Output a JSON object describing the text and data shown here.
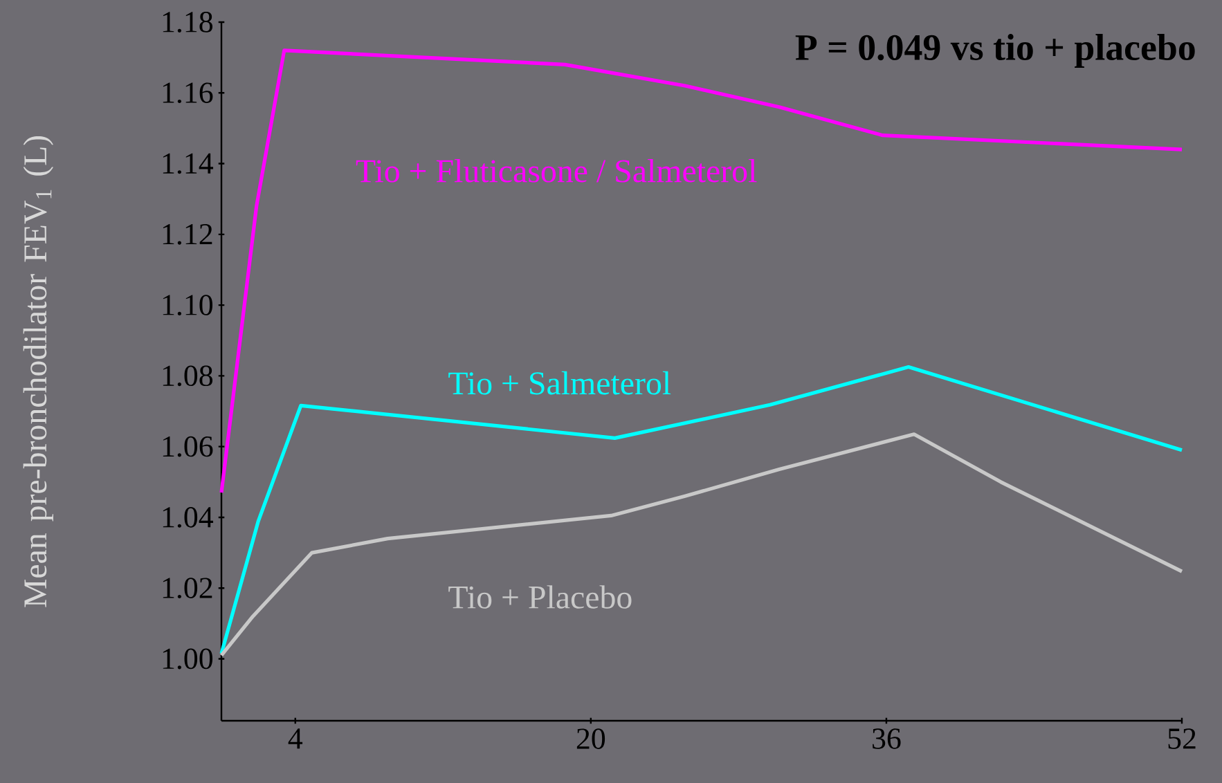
{
  "chart_data": {
    "type": "line",
    "ylabel": "Mean pre-bronchodilator FEV$_{1}$ (L)",
    "annotations": [
      "**P = 0.049 vs tio + placebo**"
    ],
    "xlim": [
      0,
      52
    ],
    "xticks": [
      4,
      20,
      36,
      52
    ],
    "ylim": [
      0.9825,
      1.18
    ],
    "yticks": [
      {
        "value": 1,
        "label": "1.00"
      },
      1.02,
      1.04,
      1.06,
      1.08,
      {
        "value": 1.1,
        "label": "1.10"
      },
      1.12,
      1.14,
      1.16,
      1.18
    ],
    "grid": false,
    "marker": "none",
    "line_style": "solid",
    "series": [
      {
        "name": "Tio + Fluticasone / Salmeterol",
        "color": "#ff00ff",
        "x": [
          0,
          1.9,
          3.4,
          18.6,
          25.1,
          30.2,
          35.8,
          52
        ],
        "values": [
          1.047,
          1.128,
          1.172,
          1.168,
          1.162,
          1.156,
          1.148,
          1.144
        ]
      },
      {
        "name": "Tio + Salmeterol",
        "color": "#00ffff",
        "x": [
          0,
          2,
          4.3,
          21.3,
          29.7,
          37.2,
          52
        ],
        "values": [
          1.0015,
          1.039,
          1.0716,
          1.0624,
          1.0718,
          1.0825,
          1.059
        ]
      },
      {
        "name": "Tio + Placebo",
        "color": "#c8c8c8",
        "x": [
          0,
          1.7,
          4.9,
          9,
          21.1,
          25.1,
          30.2,
          37.5,
          42.2,
          52
        ],
        "values": [
          1.001,
          1.012,
          1.03,
          1.034,
          1.0405,
          1.046,
          1.0536,
          1.0635,
          1.05,
          1.0247
        ]
      }
    ]
  }
}
